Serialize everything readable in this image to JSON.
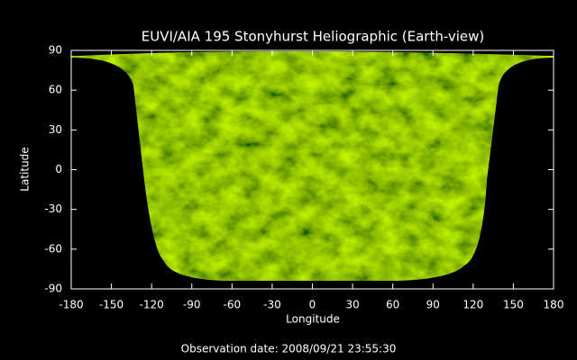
{
  "chart_data": {
    "type": "image",
    "title": "EUVI/AIA 195 Stonyhurst Heliographic (Earth-view)",
    "xlabel": "Longitude",
    "ylabel": "Latitude",
    "xlim": [
      -180,
      180
    ],
    "ylim": [
      -90,
      90
    ],
    "xticks": [
      -180,
      -150,
      -120,
      -90,
      -60,
      -30,
      0,
      30,
      60,
      90,
      120,
      150,
      180
    ],
    "yticks": [
      -90,
      -60,
      -30,
      0,
      30,
      60,
      90
    ],
    "footer": "Observation date: 2008/09/21 23:55:30"
  }
}
